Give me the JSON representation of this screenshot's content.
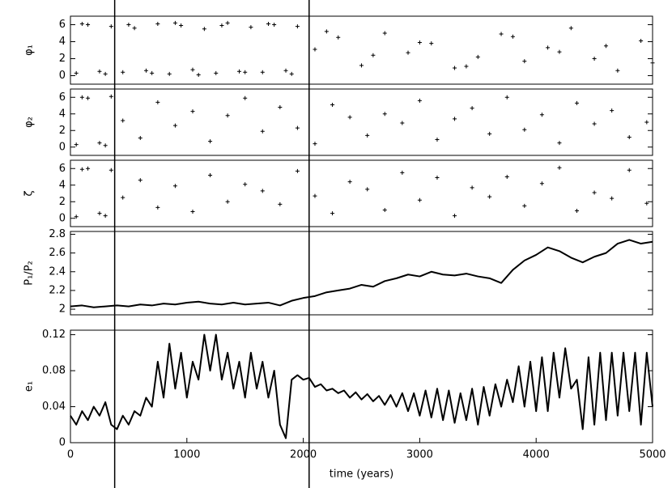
{
  "chart_data": [
    {
      "type": "scatter",
      "ylabel": "φ₁",
      "xlim": [
        0,
        5000
      ],
      "ylim": [
        -1,
        7
      ],
      "yticks": [
        0,
        2,
        4,
        6
      ],
      "color": "#000000",
      "x": [
        50,
        150,
        250,
        350,
        450,
        550,
        650,
        750,
        850,
        950,
        1050,
        1150,
        1250,
        1350,
        1450,
        1550,
        1650,
        1750,
        1850,
        1950,
        100,
        300,
        500,
        700,
        900,
        1100,
        1300,
        1500,
        1700,
        1900,
        2100,
        2300,
        2500,
        2700,
        2900,
        3100,
        3300,
        3500,
        3700,
        3900,
        4100,
        4300,
        4500,
        4700,
        4900,
        2200,
        2600,
        3000,
        3400,
        3800,
        4200,
        4600,
        5000
      ],
      "y": [
        0.3,
        6.0,
        0.5,
        5.8,
        0.4,
        5.6,
        0.6,
        6.1,
        0.2,
        5.9,
        0.7,
        5.5,
        0.3,
        6.2,
        0.5,
        5.7,
        0.4,
        6.0,
        0.6,
        5.8,
        6.1,
        0.2,
        6.0,
        0.3,
        6.2,
        0.1,
        5.9,
        0.4,
        6.1,
        0.2,
        3.1,
        4.5,
        1.2,
        5.0,
        2.7,
        3.8,
        0.9,
        2.2,
        4.9,
        1.7,
        3.3,
        5.6,
        2.0,
        0.6,
        4.1,
        5.2,
        2.4,
        3.9,
        1.1,
        4.6,
        2.8,
        3.5,
        1.5
      ]
    },
    {
      "type": "scatter",
      "ylabel": "φ₂",
      "xlim": [
        0,
        5000
      ],
      "ylim": [
        -1,
        7
      ],
      "yticks": [
        0,
        2,
        4,
        6
      ],
      "color": "#000000",
      "x": [
        50,
        150,
        250,
        350,
        100,
        300,
        450,
        600,
        750,
        900,
        1050,
        1200,
        1350,
        1500,
        1650,
        1800,
        1950,
        2100,
        2250,
        2400,
        2550,
        2700,
        2850,
        3000,
        3150,
        3300,
        3450,
        3600,
        3750,
        3900,
        4050,
        4200,
        4350,
        4500,
        4650,
        4800,
        4950
      ],
      "y": [
        0.3,
        5.9,
        0.5,
        6.1,
        6.0,
        0.2,
        3.2,
        1.1,
        5.4,
        2.6,
        4.3,
        0.7,
        3.8,
        5.9,
        1.9,
        4.8,
        2.3,
        0.4,
        5.1,
        3.6,
        1.4,
        4.0,
        2.9,
        5.6,
        0.9,
        3.4,
        4.7,
        1.6,
        6.0,
        2.1,
        3.9,
        0.5,
        5.3,
        2.8,
        4.4,
        1.2,
        3.0
      ]
    },
    {
      "type": "scatter",
      "ylabel": "ζ",
      "xlim": [
        0,
        5000
      ],
      "ylim": [
        -1,
        7
      ],
      "yticks": [
        0,
        2,
        4,
        6
      ],
      "color": "#000000",
      "x": [
        50,
        150,
        250,
        350,
        100,
        300,
        450,
        600,
        750,
        900,
        1050,
        1200,
        1350,
        1500,
        1650,
        1800,
        1950,
        2100,
        2250,
        2400,
        2550,
        2700,
        2850,
        3000,
        3150,
        3300,
        3450,
        3600,
        3750,
        3900,
        4050,
        4200,
        4350,
        4500,
        4650,
        4800,
        4950
      ],
      "y": [
        0.2,
        6.0,
        0.6,
        5.8,
        5.9,
        0.3,
        2.5,
        4.6,
        1.3,
        3.9,
        0.8,
        5.2,
        2.0,
        4.1,
        3.3,
        1.7,
        5.7,
        2.7,
        0.6,
        4.4,
        3.5,
        1.0,
        5.5,
        2.2,
        4.9,
        0.3,
        3.7,
        2.6,
        5.0,
        1.5,
        4.2,
        6.1,
        0.9,
        3.1,
        2.4,
        5.8,
        1.8
      ]
    },
    {
      "type": "line",
      "ylabel": "P₁/P₂",
      "xlim": [
        0,
        5000
      ],
      "ylim": [
        1.94,
        2.83
      ],
      "yticks": [
        2,
        2.2,
        2.4,
        2.6,
        2.8
      ],
      "color": "#000000",
      "x": [
        0,
        100,
        200,
        300,
        400,
        500,
        600,
        700,
        800,
        900,
        1000,
        1100,
        1200,
        1300,
        1400,
        1500,
        1600,
        1700,
        1800,
        1900,
        2000,
        2100,
        2200,
        2300,
        2400,
        2500,
        2600,
        2700,
        2800,
        2900,
        3000,
        3100,
        3200,
        3300,
        3400,
        3500,
        3600,
        3700,
        3800,
        3900,
        4000,
        4100,
        4200,
        4300,
        4400,
        4500,
        4600,
        4700,
        4800,
        4900,
        5000
      ],
      "values": [
        2.03,
        2.04,
        2.02,
        2.03,
        2.04,
        2.03,
        2.05,
        2.04,
        2.06,
        2.05,
        2.07,
        2.08,
        2.06,
        2.05,
        2.07,
        2.05,
        2.06,
        2.07,
        2.04,
        2.09,
        2.12,
        2.14,
        2.18,
        2.2,
        2.22,
        2.26,
        2.24,
        2.3,
        2.33,
        2.37,
        2.35,
        2.4,
        2.37,
        2.36,
        2.38,
        2.35,
        2.33,
        2.28,
        2.42,
        2.52,
        2.58,
        2.66,
        2.62,
        2.55,
        2.5,
        2.56,
        2.6,
        2.7,
        2.74,
        2.7,
        2.72
      ]
    },
    {
      "type": "line",
      "ylabel": "e₁",
      "xlabel": "time (years)",
      "xlim": [
        0,
        5000
      ],
      "ylim": [
        0,
        0.125
      ],
      "yticks": [
        0,
        0.04,
        0.08,
        0.12
      ],
      "xticks": [
        0,
        1000,
        2000,
        3000,
        4000,
        5000
      ],
      "vlines": [
        380,
        2050
      ],
      "color": "#000000",
      "x": [
        0,
        50,
        100,
        150,
        200,
        250,
        300,
        350,
        400,
        450,
        500,
        550,
        600,
        650,
        700,
        750,
        800,
        850,
        900,
        950,
        1000,
        1050,
        1100,
        1150,
        1200,
        1250,
        1300,
        1350,
        1400,
        1450,
        1500,
        1550,
        1600,
        1650,
        1700,
        1750,
        1800,
        1850,
        1900,
        1950,
        2000,
        2050,
        2100,
        2150,
        2200,
        2250,
        2300,
        2350,
        2400,
        2450,
        2500,
        2550,
        2600,
        2650,
        2700,
        2750,
        2800,
        2850,
        2900,
        2950,
        3000,
        3050,
        3100,
        3150,
        3200,
        3250,
        3300,
        3350,
        3400,
        3450,
        3500,
        3550,
        3600,
        3650,
        3700,
        3750,
        3800,
        3850,
        3900,
        3950,
        4000,
        4050,
        4100,
        4150,
        4200,
        4250,
        4300,
        4350,
        4400,
        4450,
        4500,
        4550,
        4600,
        4650,
        4700,
        4750,
        4800,
        4850,
        4900,
        4950,
        5000
      ],
      "values": [
        0.03,
        0.02,
        0.035,
        0.025,
        0.04,
        0.03,
        0.045,
        0.02,
        0.015,
        0.03,
        0.02,
        0.035,
        0.03,
        0.05,
        0.04,
        0.09,
        0.05,
        0.11,
        0.06,
        0.1,
        0.05,
        0.09,
        0.07,
        0.12,
        0.08,
        0.12,
        0.07,
        0.1,
        0.06,
        0.09,
        0.05,
        0.1,
        0.06,
        0.09,
        0.05,
        0.08,
        0.02,
        0.005,
        0.07,
        0.075,
        0.07,
        0.072,
        0.062,
        0.065,
        0.058,
        0.06,
        0.055,
        0.058,
        0.05,
        0.056,
        0.048,
        0.054,
        0.046,
        0.052,
        0.042,
        0.053,
        0.04,
        0.055,
        0.035,
        0.055,
        0.03,
        0.058,
        0.028,
        0.06,
        0.025,
        0.058,
        0.022,
        0.055,
        0.025,
        0.06,
        0.02,
        0.062,
        0.03,
        0.065,
        0.04,
        0.07,
        0.045,
        0.085,
        0.04,
        0.09,
        0.035,
        0.095,
        0.035,
        0.1,
        0.05,
        0.105,
        0.06,
        0.07,
        0.015,
        0.095,
        0.02,
        0.1,
        0.025,
        0.1,
        0.03,
        0.1,
        0.035,
        0.1,
        0.02,
        0.1,
        0.04
      ]
    }
  ]
}
